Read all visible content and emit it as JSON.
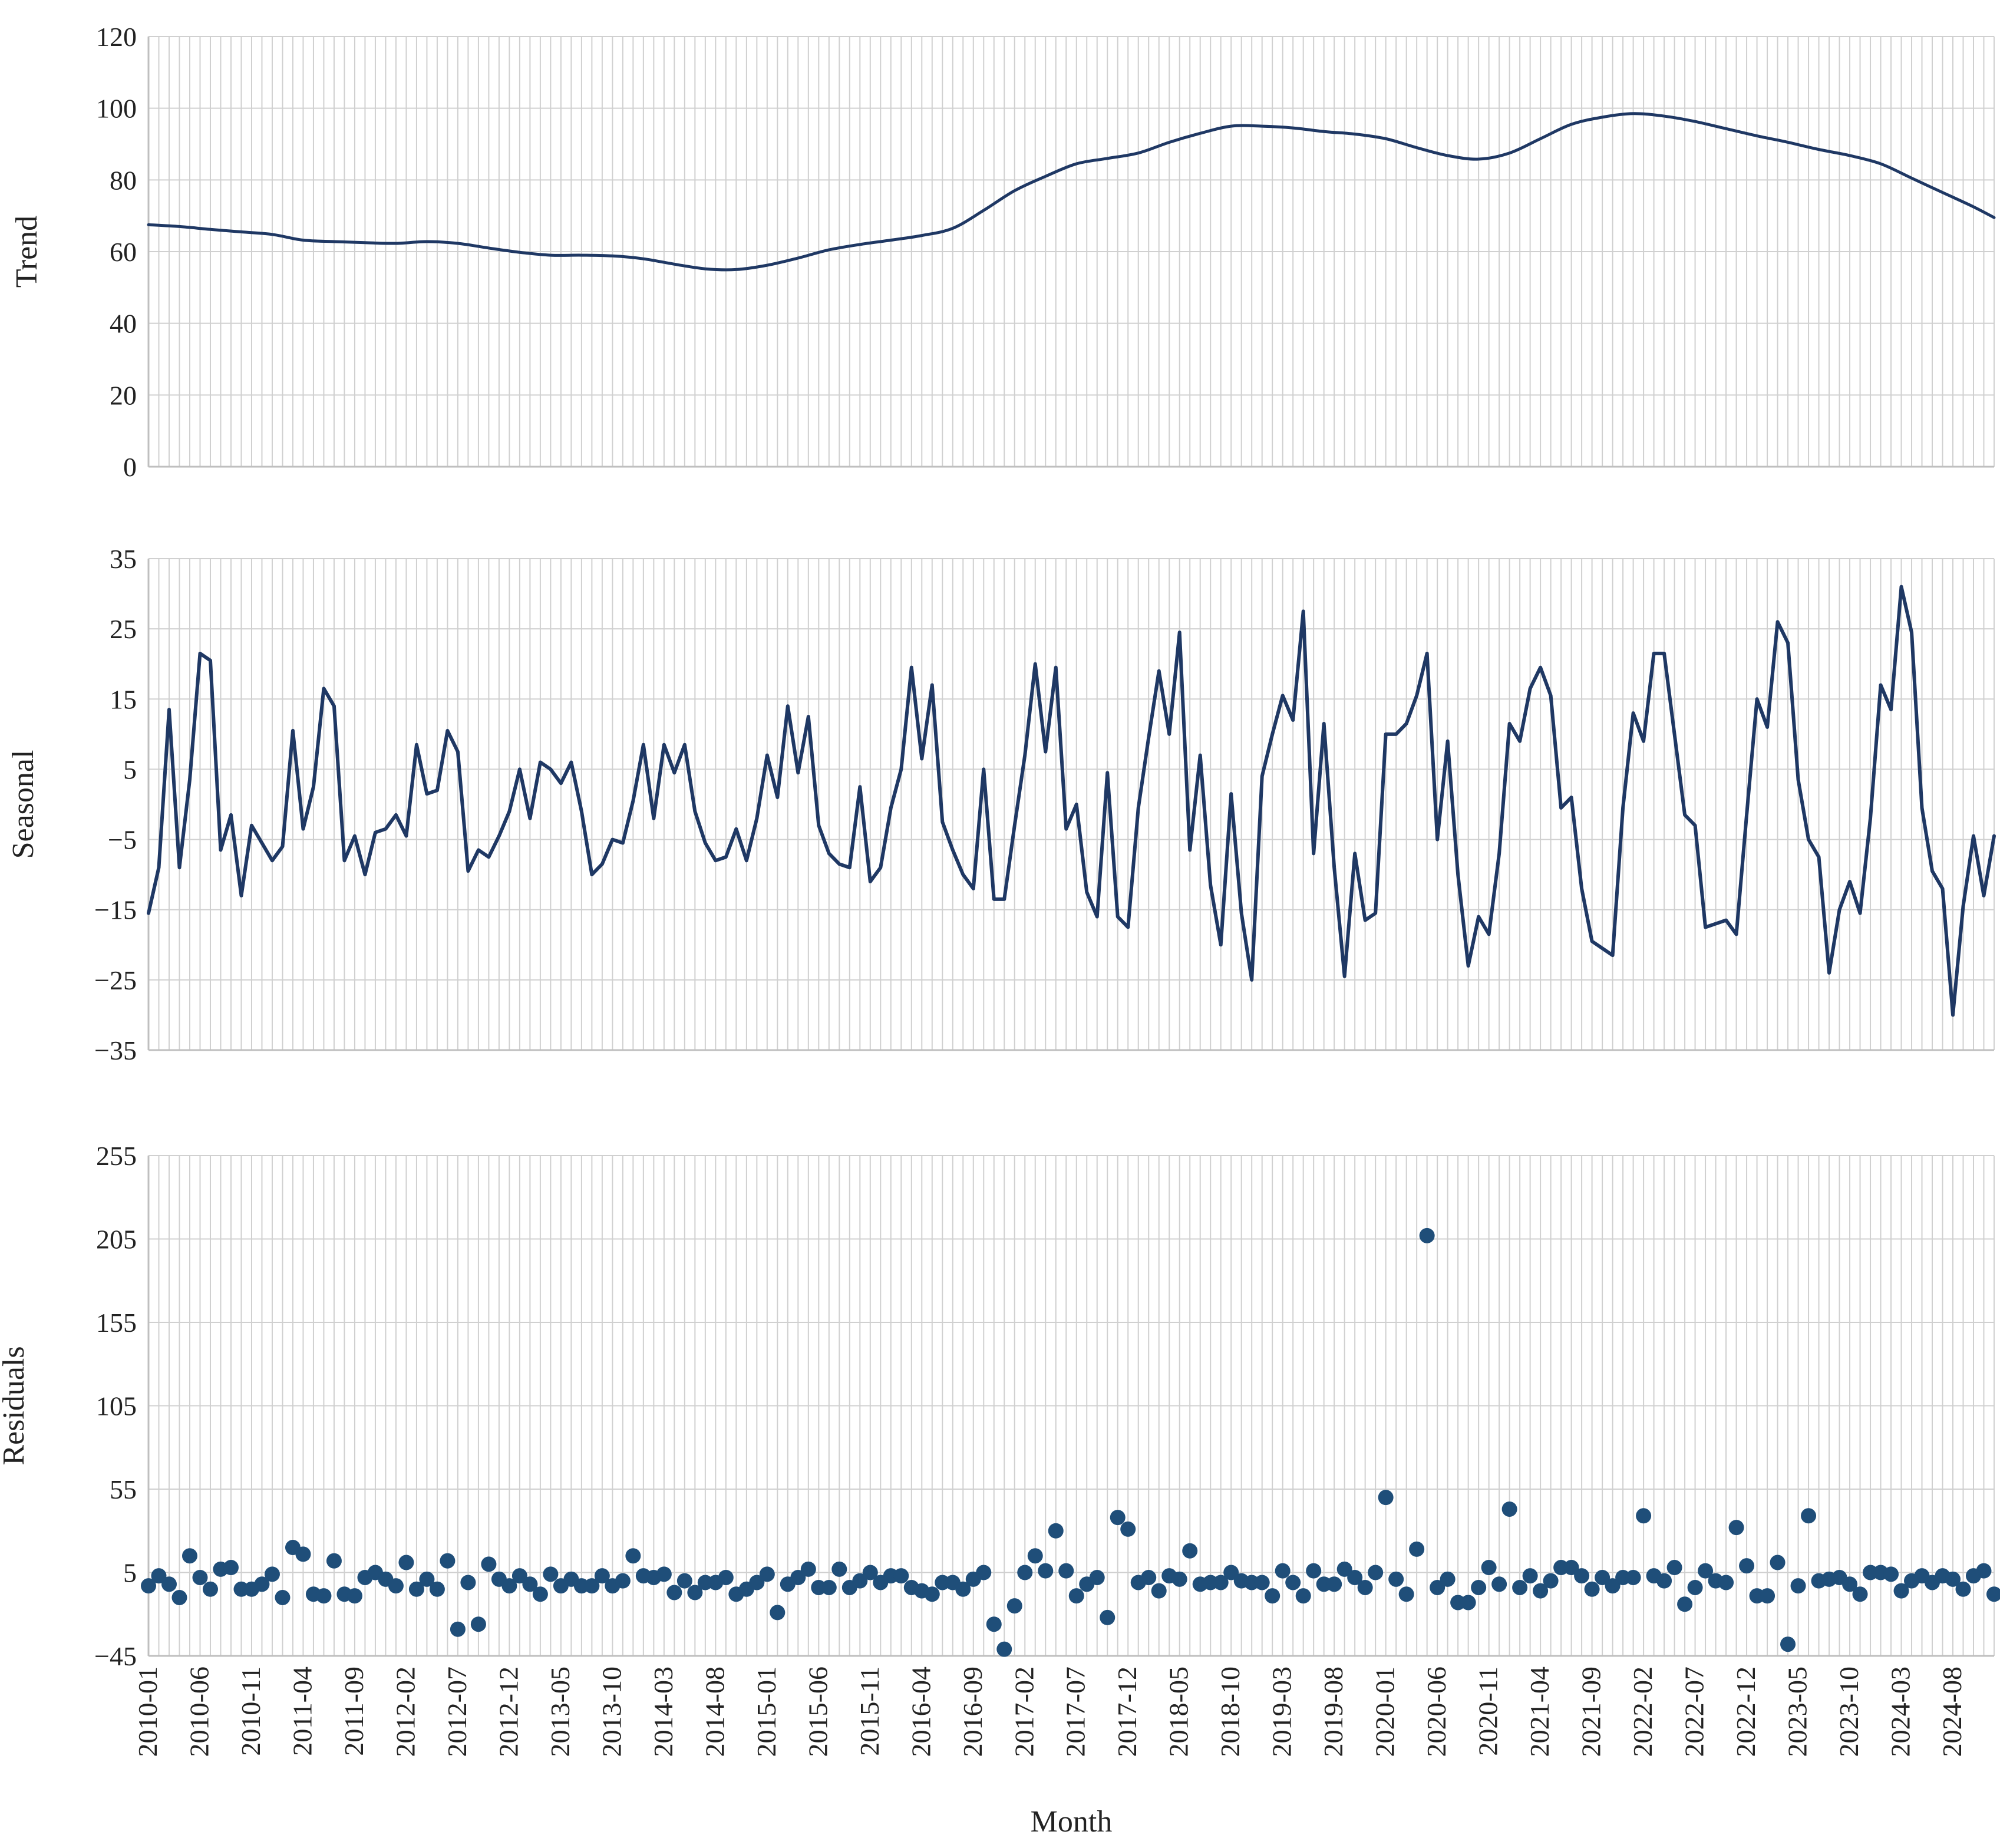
{
  "chart_data": [
    {
      "type": "line",
      "ylabel": "Trend",
      "xlabel": "",
      "ylim": [
        0,
        120
      ],
      "yticks": [
        "0",
        "20",
        "40",
        "60",
        "80",
        "100",
        "120"
      ],
      "x_range": [
        "2010-01",
        "2024-12"
      ],
      "grid": true,
      "color": "#1f3864",
      "anchors": [
        {
          "x": "2010-01",
          "y": 67.5
        },
        {
          "x": "2010-04",
          "y": 67
        },
        {
          "x": "2010-07",
          "y": 66.2
        },
        {
          "x": "2010-10",
          "y": 65.5
        },
        {
          "x": "2011-01",
          "y": 64.8
        },
        {
          "x": "2011-04",
          "y": 63.2
        },
        {
          "x": "2011-07",
          "y": 62.8
        },
        {
          "x": "2011-10",
          "y": 62.5
        },
        {
          "x": "2012-01",
          "y": 62.3
        },
        {
          "x": "2012-04",
          "y": 62.8
        },
        {
          "x": "2012-07",
          "y": 62.3
        },
        {
          "x": "2012-10",
          "y": 61
        },
        {
          "x": "2013-01",
          "y": 59.8
        },
        {
          "x": "2013-04",
          "y": 59
        },
        {
          "x": "2013-07",
          "y": 59
        },
        {
          "x": "2013-10",
          "y": 58.8
        },
        {
          "x": "2014-01",
          "y": 58
        },
        {
          "x": "2014-04",
          "y": 56.5
        },
        {
          "x": "2014-07",
          "y": 55.2
        },
        {
          "x": "2014-10",
          "y": 55
        },
        {
          "x": "2015-01",
          "y": 56.2
        },
        {
          "x": "2015-04",
          "y": 58.2
        },
        {
          "x": "2015-07",
          "y": 60.5
        },
        {
          "x": "2015-10",
          "y": 62
        },
        {
          "x": "2016-01",
          "y": 63.2
        },
        {
          "x": "2016-04",
          "y": 64.5
        },
        {
          "x": "2016-07",
          "y": 66.5
        },
        {
          "x": "2016-10",
          "y": 71.5
        },
        {
          "x": "2017-01",
          "y": 77
        },
        {
          "x": "2017-04",
          "y": 81
        },
        {
          "x": "2017-07",
          "y": 84.5
        },
        {
          "x": "2017-10",
          "y": 86
        },
        {
          "x": "2018-01",
          "y": 87.5
        },
        {
          "x": "2018-04",
          "y": 90.5
        },
        {
          "x": "2018-07",
          "y": 93
        },
        {
          "x": "2018-10",
          "y": 95
        },
        {
          "x": "2019-01",
          "y": 95
        },
        {
          "x": "2019-04",
          "y": 94.5
        },
        {
          "x": "2019-07",
          "y": 93.5
        },
        {
          "x": "2019-10",
          "y": 92.8
        },
        {
          "x": "2020-01",
          "y": 91.5
        },
        {
          "x": "2020-04",
          "y": 89
        },
        {
          "x": "2020-07",
          "y": 86.8
        },
        {
          "x": "2020-10",
          "y": 85.8
        },
        {
          "x": "2021-01",
          "y": 87.5
        },
        {
          "x": "2021-04",
          "y": 91.5
        },
        {
          "x": "2021-07",
          "y": 95.5
        },
        {
          "x": "2021-10",
          "y": 97.5
        },
        {
          "x": "2022-01",
          "y": 98.5
        },
        {
          "x": "2022-04",
          "y": 97.8
        },
        {
          "x": "2022-07",
          "y": 96.3
        },
        {
          "x": "2022-10",
          "y": 94.3
        },
        {
          "x": "2023-01",
          "y": 92.3
        },
        {
          "x": "2023-04",
          "y": 90.5
        },
        {
          "x": "2023-07",
          "y": 88.5
        },
        {
          "x": "2023-10",
          "y": 86.8
        },
        {
          "x": "2024-01",
          "y": 84.5
        },
        {
          "x": "2024-04",
          "y": 80.5
        },
        {
          "x": "2024-07",
          "y": 76.5
        },
        {
          "x": "2024-10",
          "y": 72.5
        },
        {
          "x": "2024-12",
          "y": 69.5
        }
      ]
    },
    {
      "type": "line",
      "ylabel": "Seasonal",
      "xlabel": "",
      "ylim": [
        -35,
        35
      ],
      "yticks": [
        "-35",
        "-25",
        "-15",
        "-5",
        "5",
        "15",
        "25",
        "35"
      ],
      "x_range": [
        "2010-01",
        "2024-12"
      ],
      "grid": true,
      "color": "#1f3864",
      "values": [
        -15.5,
        -9,
        13.5,
        -9,
        3.5,
        21.5,
        20.5,
        -6.5,
        -1.5,
        -13,
        -3,
        -5.5,
        -8,
        -6,
        10.5,
        -3.5,
        2.5,
        16.5,
        14,
        -8,
        -4.5,
        -10,
        -4,
        -3.5,
        -1.5,
        -4.5,
        8.5,
        1.5,
        2,
        10.5,
        7.5,
        -9.5,
        -6.5,
        -7.5,
        -4.5,
        -1,
        5,
        -2,
        6,
        5,
        3,
        6,
        -1,
        -10,
        -8.5,
        -5,
        -5.5,
        0.5,
        8.5,
        -2,
        8.5,
        4.5,
        8.5,
        -1,
        -5.5,
        -8,
        -7.5,
        -3.5,
        -8,
        -2,
        7,
        1,
        14,
        4.5,
        12.5,
        -3,
        -7,
        -8.5,
        -9,
        2.5,
        -11,
        -9,
        -0.5,
        5,
        19.5,
        6.5,
        17,
        -2.5,
        -6.5,
        -10,
        -12,
        5,
        -13.5,
        -13.5,
        -3,
        7,
        20,
        7.5,
        19.5,
        -3.5,
        0,
        -12.5,
        -16,
        4.5,
        -16,
        -17.5,
        -0.5,
        9.5,
        19,
        10,
        24.5,
        -6.5,
        7,
        -11.5,
        -20,
        1.5,
        -15.5,
        -25,
        4,
        10,
        15.5,
        12,
        27.5,
        -7,
        11.5,
        -9,
        -24.5,
        -7,
        -16.5,
        -15.5,
        10,
        10,
        11.5,
        15.5,
        21.5,
        -5,
        9,
        -10,
        -23,
        -16,
        -18.5,
        -7,
        11.5,
        9,
        16.5,
        19.5,
        15.5,
        -0.5,
        1,
        -12,
        -19.5,
        -20.5,
        -21.5,
        -0.5,
        13,
        9,
        21.5,
        21.5,
        10,
        -1.5,
        -3,
        -17.5,
        -17,
        -16.5,
        -18.5,
        -1.5,
        15,
        11,
        26,
        23,
        3.5,
        -5,
        -7.5,
        -24,
        -15,
        -11,
        -15.5,
        -2,
        17,
        13.5,
        31,
        24.5,
        -0.5,
        -9.5,
        -12,
        -30,
        -14.5,
        -4.5,
        -13,
        -4.5
      ]
    },
    {
      "type": "scatter",
      "ylabel": "Residuals",
      "xlabel": "Month",
      "ylim": [
        -45,
        255
      ],
      "yticks": [
        "-45",
        "5",
        "55",
        "105",
        "155",
        "205",
        "255"
      ],
      "x_range": [
        "2010-01",
        "2024-12"
      ],
      "grid": true,
      "color": "#1f4e79",
      "values": [
        -3,
        3,
        -2,
        -10,
        15,
        2,
        -5,
        7,
        8,
        -5,
        -5,
        -2,
        4,
        -10,
        20,
        16,
        -8,
        -9,
        12,
        -8,
        -9,
        2,
        5,
        1,
        -3,
        11,
        -5,
        1,
        -5,
        12,
        -29,
        -1,
        -26,
        10,
        1,
        -3,
        3,
        -2,
        -8,
        4,
        -3,
        1,
        -3,
        -3,
        3,
        -3,
        0,
        15,
        3,
        2,
        4,
        -7,
        0,
        -7,
        -1,
        -1,
        2,
        -8,
        -5,
        -1,
        4,
        -19,
        -2,
        2,
        7,
        -4,
        -4,
        7,
        -4,
        0,
        5,
        -1,
        3,
        3,
        -4,
        -6,
        -8,
        -1,
        -1,
        -5,
        1,
        5,
        -26,
        -41,
        -15,
        5,
        15,
        6,
        30,
        6,
        -9,
        -2,
        2,
        -22,
        38,
        31,
        -1,
        2,
        -6,
        3,
        1,
        18,
        -2,
        -1,
        -1,
        5,
        0,
        -1,
        -1,
        -9,
        6,
        -1,
        -9,
        6,
        -2,
        -2,
        7,
        2,
        -4,
        5,
        50,
        1,
        -8,
        19,
        207,
        -4,
        1,
        -13,
        -13,
        -4,
        8,
        -2,
        43,
        -4,
        3,
        -6,
        0,
        8,
        8,
        3,
        -5,
        2,
        -3,
        2,
        2,
        39,
        3,
        0,
        8,
        -14,
        -4,
        6,
        0,
        -1,
        32,
        9,
        -9,
        -9,
        11,
        -38,
        -3,
        39,
        0,
        1,
        2,
        -2,
        -8,
        5,
        5,
        4,
        -6,
        0,
        3,
        -1,
        3,
        1,
        -5,
        3,
        6,
        -8
      ]
    }
  ],
  "x_tick_labels": [
    "2010-01",
    "2010-06",
    "2010-11",
    "2011-04",
    "2011-09",
    "2012-02",
    "2012-07",
    "2012-12",
    "2013-05",
    "2013-10",
    "2014-03",
    "2014-08",
    "2015-01",
    "2015-06",
    "2015-11",
    "2016-04",
    "2016-09",
    "2017-02",
    "2017-07",
    "2017-12",
    "2018-05",
    "2018-10",
    "2019-03",
    "2019-08",
    "2020-01",
    "2020-06",
    "2020-11",
    "2021-04",
    "2021-09",
    "2022-02",
    "2022-07",
    "2022-12",
    "2023-05",
    "2023-10",
    "2024-03",
    "2024-08"
  ],
  "x_tick_step_months": 5,
  "grid_color": "#d0d0d0",
  "axis_color": "#bfbfbf"
}
